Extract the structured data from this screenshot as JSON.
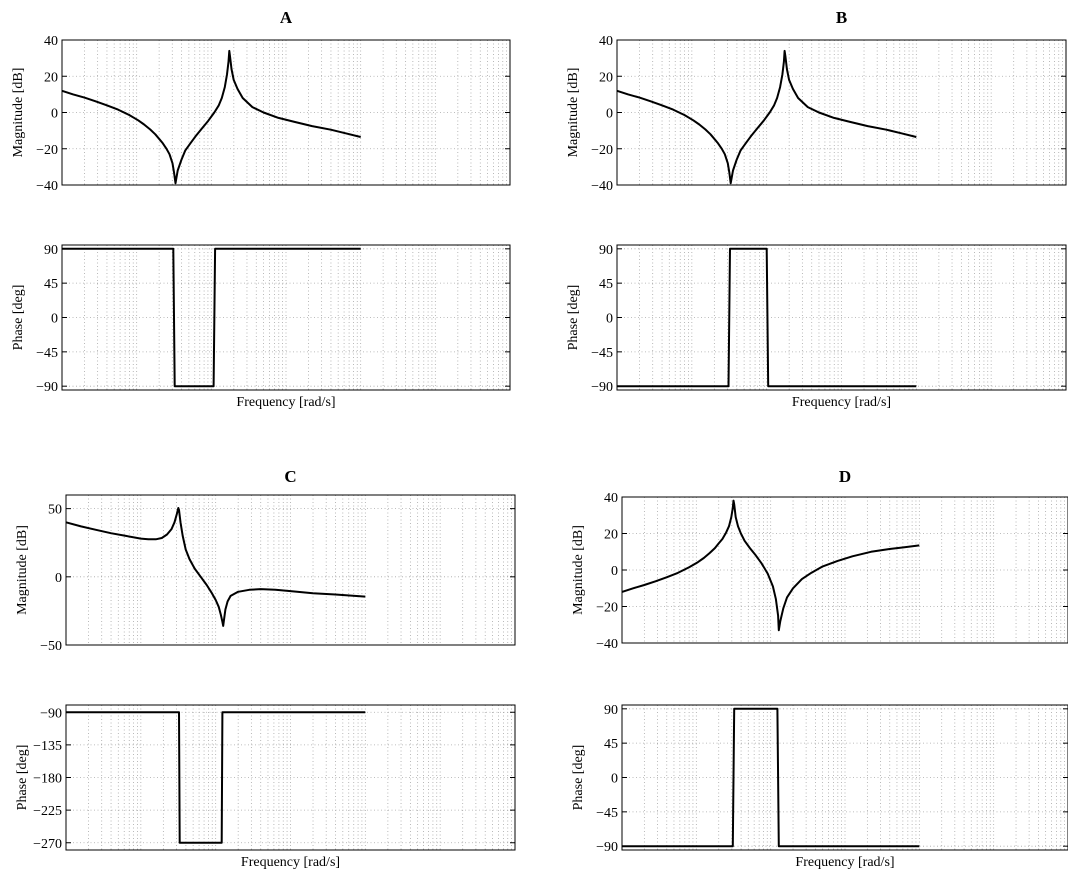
{
  "colors": {
    "background": "#ffffff",
    "line": "#000000",
    "grid": "#a8a8a8"
  },
  "chart_data": [
    {
      "id": "A",
      "type": "line",
      "title": "A",
      "grid": true,
      "x_scale": "log",
      "x_decades": 6,
      "magnitude": {
        "ylabel": "Magnitude [dB]",
        "ylim": [
          -40,
          40
        ],
        "yticks": [
          -40,
          -20,
          0,
          20,
          40
        ],
        "ytick_labels": [
          "−40",
          "−20",
          "0",
          "20",
          "40"
        ],
        "x": [
          0,
          0.15,
          0.3,
          0.45,
          0.6,
          0.75,
          0.9,
          1.02,
          1.1,
          1.18,
          1.25,
          1.3,
          1.35,
          1.4,
          1.44,
          1.48,
          1.5,
          1.52,
          1.55,
          1.6,
          1.65,
          1.72,
          1.8,
          1.88,
          1.96,
          2.04,
          2.1,
          2.14,
          2.18,
          2.21,
          2.23,
          2.24,
          2.25,
          2.27,
          2.3,
          2.35,
          2.42,
          2.55,
          2.7,
          2.9,
          3.1,
          3.35,
          3.6,
          3.8,
          4.0
        ],
        "y": [
          12,
          10,
          8.2,
          6.2,
          4.0,
          1.6,
          -1.4,
          -4.3,
          -6.6,
          -9.3,
          -12,
          -14.5,
          -17,
          -20,
          -23,
          -28,
          -33,
          -39,
          -32,
          -26,
          -21,
          -17,
          -12.5,
          -8.5,
          -4.5,
          0,
          4,
          8,
          14,
          21,
          28,
          34,
          31,
          24,
          18,
          13,
          8,
          3,
          0,
          -3,
          -5,
          -7.5,
          -9.5,
          -11.5,
          -13.5
        ]
      },
      "phase": {
        "ylabel": "Phase [deg]",
        "xlabel": "Frequency [rad/s]",
        "ylim": [
          -95,
          95
        ],
        "yticks": [
          90,
          45,
          0,
          -45,
          -90
        ],
        "ytick_labels": [
          "90",
          "45",
          "0",
          "−45",
          "−90"
        ],
        "x": [
          0,
          1.49,
          1.51,
          2.03,
          2.05,
          4.0
        ],
        "y": [
          90,
          90,
          -90,
          -90,
          90,
          90
        ]
      }
    },
    {
      "id": "B",
      "type": "line",
      "title": "B",
      "grid": true,
      "x_scale": "log",
      "x_decades": 6,
      "magnitude": {
        "ylabel": "Magnitude [dB]",
        "ylim": [
          -40,
          40
        ],
        "yticks": [
          -40,
          -20,
          0,
          20,
          40
        ],
        "ytick_labels": [
          "−40",
          "−20",
          "0",
          "20",
          "40"
        ],
        "x": [
          0,
          0.15,
          0.3,
          0.45,
          0.6,
          0.75,
          0.9,
          1.02,
          1.1,
          1.18,
          1.25,
          1.3,
          1.35,
          1.4,
          1.44,
          1.48,
          1.5,
          1.52,
          1.55,
          1.6,
          1.65,
          1.72,
          1.8,
          1.88,
          1.96,
          2.04,
          2.1,
          2.14,
          2.18,
          2.21,
          2.23,
          2.24,
          2.25,
          2.27,
          2.3,
          2.35,
          2.42,
          2.55,
          2.7,
          2.9,
          3.1,
          3.35,
          3.6,
          3.8,
          4.0
        ],
        "y": [
          12,
          10,
          8.2,
          6.2,
          4.0,
          1.6,
          -1.4,
          -4.3,
          -6.6,
          -9.3,
          -12,
          -14.5,
          -17,
          -20,
          -23,
          -28,
          -33,
          -39,
          -32,
          -26,
          -21,
          -17,
          -12.5,
          -8.5,
          -4.5,
          0,
          4,
          8,
          14,
          21,
          28,
          34,
          31,
          24,
          18,
          13,
          8,
          3,
          0,
          -3,
          -5,
          -7.5,
          -9.5,
          -11.5,
          -13.5
        ]
      },
      "phase": {
        "ylabel": "Phase [deg]",
        "xlabel": "Frequency [rad/s]",
        "ylim": [
          -95,
          95
        ],
        "yticks": [
          90,
          45,
          0,
          -45,
          -90
        ],
        "ytick_labels": [
          "90",
          "45",
          "0",
          "−45",
          "−90"
        ],
        "x": [
          0,
          1.49,
          1.51,
          2.0,
          2.02,
          4.0
        ],
        "y": [
          -90,
          -90,
          90,
          90,
          -90,
          -90
        ]
      }
    },
    {
      "id": "C",
      "type": "line",
      "title": "C",
      "grid": true,
      "x_scale": "log",
      "x_decades": 6,
      "magnitude": {
        "ylabel": "Magnitude [dB]",
        "ylim": [
          -50,
          60
        ],
        "yticks": [
          -50,
          0,
          50
        ],
        "ytick_labels": [
          "−50",
          "0",
          "50"
        ],
        "x": [
          0,
          0.2,
          0.4,
          0.6,
          0.8,
          1.0,
          1.1,
          1.2,
          1.28,
          1.35,
          1.41,
          1.45,
          1.48,
          1.5,
          1.51,
          1.53,
          1.56,
          1.6,
          1.65,
          1.72,
          1.8,
          1.88,
          1.95,
          2.0,
          2.04,
          2.07,
          2.09,
          2.1,
          2.11,
          2.13,
          2.16,
          2.2,
          2.3,
          2.45,
          2.6,
          2.8,
          3.0,
          3.3,
          3.6,
          4.0
        ],
        "y": [
          40,
          37,
          34.5,
          32,
          30,
          28,
          27.5,
          27.5,
          28.5,
          31,
          35,
          40,
          46,
          50.5,
          49,
          40,
          30,
          20,
          13,
          6,
          0,
          -6,
          -12,
          -17,
          -22,
          -28,
          -33,
          -36,
          -32,
          -24,
          -18,
          -14,
          -11,
          -9.5,
          -9,
          -9.5,
          -10.5,
          -12,
          -13,
          -14.5
        ]
      },
      "phase": {
        "ylabel": "Phase [deg]",
        "xlabel": "Frequency [rad/s]",
        "ylim": [
          -280,
          -80
        ],
        "yticks": [
          -90,
          -135,
          -180,
          -225,
          -270
        ],
        "ytick_labels": [
          "−90",
          "−135",
          "−180",
          "−225",
          "−270"
        ],
        "x": [
          0,
          1.51,
          1.52,
          2.08,
          2.09,
          4.0
        ],
        "y": [
          -90,
          -90,
          -270,
          -270,
          -90,
          -90
        ]
      }
    },
    {
      "id": "D",
      "type": "line",
      "title": "D",
      "grid": true,
      "x_scale": "log",
      "x_decades": 6,
      "magnitude": {
        "ylabel": "Magnitude [dB]",
        "ylim": [
          -40,
          40
        ],
        "yticks": [
          -40,
          -20,
          0,
          20,
          40
        ],
        "ytick_labels": [
          "−40",
          "−20",
          "0",
          "20",
          "40"
        ],
        "x": [
          0,
          0.15,
          0.3,
          0.45,
          0.6,
          0.75,
          0.9,
          1.02,
          1.1,
          1.18,
          1.25,
          1.3,
          1.35,
          1.4,
          1.44,
          1.47,
          1.49,
          1.5,
          1.51,
          1.53,
          1.56,
          1.6,
          1.65,
          1.72,
          1.8,
          1.88,
          1.96,
          2.03,
          2.07,
          2.1,
          2.11,
          2.13,
          2.17,
          2.22,
          2.3,
          2.42,
          2.55,
          2.7,
          2.9,
          3.1,
          3.35,
          3.6,
          3.8,
          4.0
        ],
        "y": [
          -12,
          -10,
          -8.2,
          -6.2,
          -4.0,
          -1.6,
          1.4,
          4.3,
          6.6,
          9.3,
          12,
          14.5,
          17,
          20.5,
          24,
          29,
          34,
          38,
          36,
          29,
          24,
          20,
          16,
          12,
          8,
          3.5,
          -2,
          -9,
          -16,
          -25,
          -33,
          -28,
          -21,
          -15,
          -10,
          -5,
          -1.5,
          2,
          5,
          7.5,
          10,
          11.5,
          12.5,
          13.5
        ]
      },
      "phase": {
        "ylabel": "Phase [deg]",
        "xlabel": "Frequency [rad/s]",
        "ylim": [
          -95,
          95
        ],
        "yticks": [
          90,
          45,
          0,
          -45,
          -90
        ],
        "ytick_labels": [
          "90",
          "45",
          "0",
          "−45",
          "−90"
        ],
        "x": [
          0,
          1.49,
          1.51,
          2.09,
          2.11,
          4.0
        ],
        "y": [
          -90,
          -90,
          90,
          90,
          -90,
          -90
        ]
      }
    }
  ]
}
